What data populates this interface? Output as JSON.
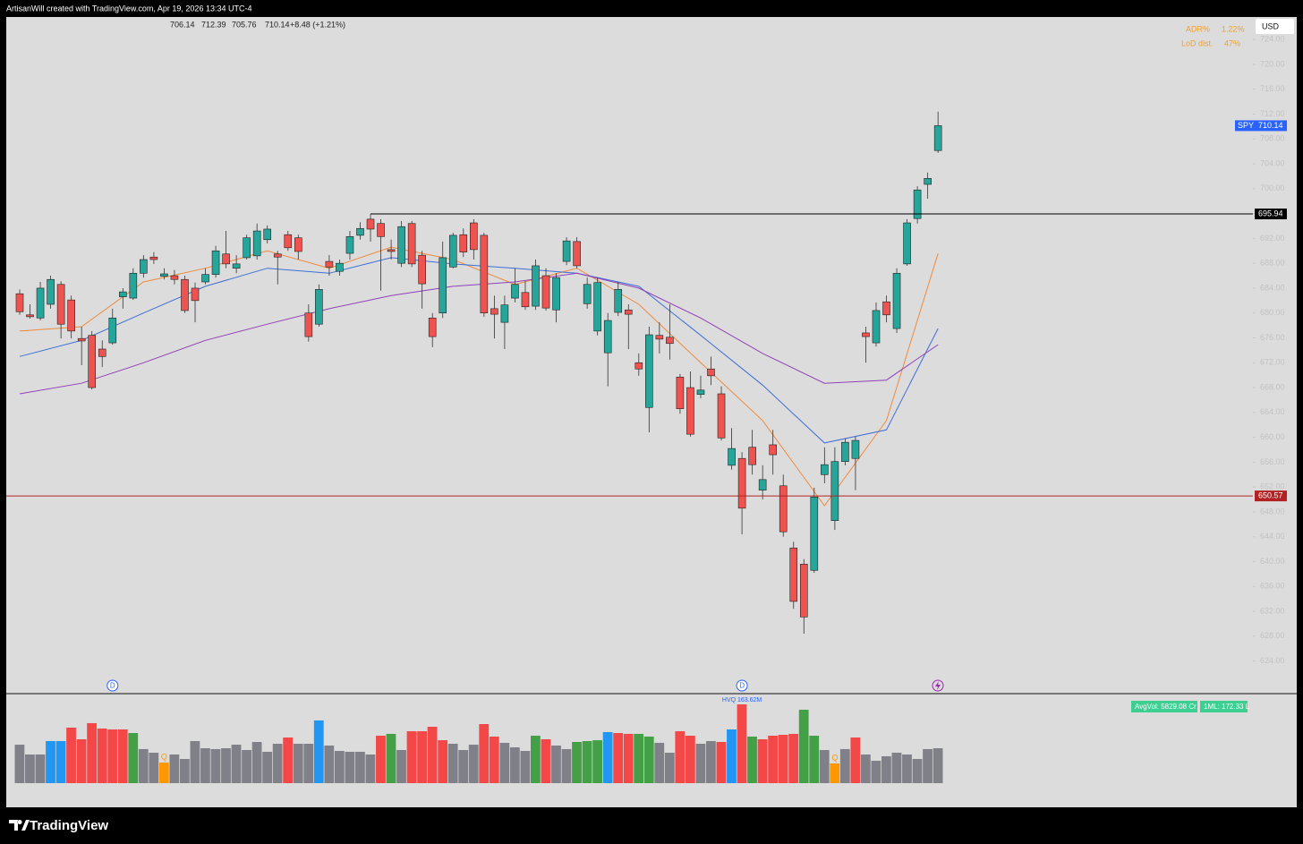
{
  "header": {
    "credit": "ArtisanWill created with TradingView.com, Apr 19, 2026 13:34 UTC-4",
    "change": "+8.48 (+1.21%)"
  },
  "footer": {
    "brand": "TradingView"
  },
  "chart_data": {
    "type": "candlestick",
    "symbol": "SPY",
    "currency": "USD",
    "up_color": "#26a69a",
    "down_color": "#ef5350",
    "open": [
      683.1,
      679.7,
      679.2,
      681.4,
      684.6,
      682.1,
      675.9,
      676.4,
      674.2,
      675.2,
      682.6,
      682.4,
      686.4,
      689.0,
      685.9,
      686.0,
      685.4,
      684.0,
      685.0,
      686.2,
      689.5,
      687.2,
      688.9,
      689.2,
      691.8,
      689.5,
      692.6,
      692.1,
      680.0,
      678.2,
      688.3,
      686.7,
      689.6,
      692.5,
      695.1,
      694.4,
      690.2,
      688.0,
      694.4,
      689.3,
      679.2,
      680.0,
      687.4,
      692.6,
      694.5,
      692.5,
      680.7,
      678.5,
      682.4,
      683.3,
      681.1,
      686.0,
      680.5,
      688.3,
      691.5,
      681.5,
      677.1,
      673.6,
      680.1,
      680.5,
      672.0,
      664.8,
      676.4,
      676.1,
      669.7,
      668.0,
      666.9,
      671.0,
      667.0,
      655.5,
      656.6,
      658.4,
      651.5,
      658.8,
      652.2,
      642.2,
      639.6,
      638.6,
      654.0,
      646.6,
      656.1,
      656.6,
      676.8,
      675.2,
      681.8,
      677.5,
      687.9,
      695.2,
      700.7,
      706.14
    ],
    "high": [
      683.8,
      681.4,
      685.0,
      686.0,
      685.1,
      682.8,
      677.8,
      677.1,
      675.6,
      680.7,
      684.0,
      687.2,
      689.3,
      689.8,
      687.2,
      686.9,
      686.0,
      684.9,
      687.2,
      690.8,
      693.2,
      689.3,
      692.6,
      694.4,
      694.1,
      690.0,
      693.2,
      692.6,
      681.4,
      684.6,
      689.3,
      688.6,
      693.2,
      694.6,
      695.9,
      695.1,
      691.8,
      694.8,
      694.8,
      690.0,
      680.0,
      691.5,
      692.9,
      693.6,
      695.1,
      692.9,
      682.8,
      682.8,
      687.2,
      685.1,
      688.6,
      687.2,
      686.4,
      692.2,
      692.2,
      685.7,
      685.7,
      680.0,
      685.0,
      681.4,
      673.5,
      677.8,
      678.5,
      681.4,
      670.2,
      670.6,
      669.9,
      673.0,
      668.2,
      661.5,
      657.6,
      661.2,
      655.5,
      661.2,
      654.0,
      643.2,
      640.4,
      651.9,
      658.4,
      658.4,
      659.8,
      660.1,
      677.8,
      681.7,
      682.8,
      687.2,
      695.1,
      700.4,
      702.6,
      712.39
    ],
    "low": [
      679.7,
      679.1,
      678.8,
      680.7,
      675.9,
      675.9,
      671.6,
      667.7,
      671.3,
      674.9,
      680.7,
      682.1,
      685.7,
      687.9,
      685.4,
      684.6,
      680.0,
      678.5,
      684.6,
      685.7,
      687.2,
      686.4,
      688.6,
      688.6,
      691.2,
      684.6,
      690.0,
      688.6,
      675.4,
      677.8,
      686.0,
      686.0,
      688.6,
      691.8,
      691.5,
      683.6,
      688.6,
      687.4,
      687.4,
      680.7,
      674.5,
      679.2,
      687.2,
      689.0,
      688.6,
      679.4,
      675.9,
      674.2,
      681.7,
      680.5,
      680.5,
      680.4,
      678.5,
      687.7,
      687.2,
      680.7,
      676.4,
      668.2,
      679.5,
      674.2,
      669.9,
      660.8,
      673.5,
      672.5,
      663.8,
      660.1,
      666.3,
      668.4,
      659.5,
      654.8,
      644.4,
      654.0,
      650.0,
      654.0,
      644.0,
      632.4,
      628.4,
      638.2,
      652.6,
      645.1,
      655.5,
      651.5,
      672.0,
      674.6,
      678.5,
      676.8,
      687.6,
      694.4,
      698.4,
      705.76
    ],
    "close": [
      680.2,
      679.4,
      684.0,
      685.4,
      678.2,
      677.1,
      675.5,
      668.0,
      673.0,
      679.2,
      683.4,
      686.4,
      688.6,
      688.6,
      686.3,
      685.4,
      680.4,
      682.0,
      686.2,
      690.0,
      687.9,
      687.9,
      692.1,
      693.2,
      693.5,
      689.0,
      690.5,
      689.9,
      676.2,
      683.8,
      687.4,
      688.0,
      692.3,
      693.6,
      693.5,
      692.3,
      689.9,
      693.9,
      687.9,
      684.7,
      676.2,
      688.9,
      692.5,
      689.8,
      690.2,
      680.0,
      679.8,
      681.3,
      684.6,
      681.0,
      687.6,
      680.8,
      685.7,
      691.6,
      687.6,
      684.6,
      684.9,
      678.8,
      683.8,
      679.8,
      671.0,
      676.5,
      675.8,
      675.1,
      664.6,
      660.5,
      667.6,
      669.9,
      659.9,
      658.2,
      648.6,
      655.6,
      653.2,
      657.2,
      644.8,
      633.6,
      631.1,
      650.4,
      655.6,
      656.1,
      659.2,
      659.5,
      676.2,
      680.4,
      679.7,
      686.4,
      694.5,
      699.8,
      701.66,
      710.14
    ],
    "ylim": [
      618.76,
      727.48
    ],
    "yticks": [
      {
        "value": 624,
        "label": "624.00"
      },
      {
        "value": 628,
        "label": "628.00"
      },
      {
        "value": 632,
        "label": "632.00"
      },
      {
        "value": 636,
        "label": "636.00"
      },
      {
        "value": 640,
        "label": "640.00"
      },
      {
        "value": 644,
        "label": "644.00"
      },
      {
        "value": 648,
        "label": "648.00"
      },
      {
        "value": 652,
        "label": "652.00"
      },
      {
        "value": 656,
        "label": "656.00"
      },
      {
        "value": 660,
        "label": "660.00"
      },
      {
        "value": 664,
        "label": "664.00"
      },
      {
        "value": 668,
        "label": "668.00"
      },
      {
        "value": 672,
        "label": "672.00"
      },
      {
        "value": 676,
        "label": "676.00"
      },
      {
        "value": 680,
        "label": "680.00"
      },
      {
        "value": 684,
        "label": "684.00"
      },
      {
        "value": 688,
        "label": "688.00"
      },
      {
        "value": 692,
        "label": "692.00"
      },
      {
        "value": 696,
        "label": "696.00"
      },
      {
        "value": 700,
        "label": "700.00"
      },
      {
        "value": 704,
        "label": "704.00"
      },
      {
        "value": 708,
        "label": "708.00"
      },
      {
        "value": 712,
        "label": "712.00"
      },
      {
        "value": 716,
        "label": "716.00"
      },
      {
        "value": 720,
        "label": "720.00"
      },
      {
        "value": 724,
        "label": "724.00"
      }
    ],
    "moving_averages": [
      {
        "color": "#f08a3c",
        "x": [
          0,
          6,
          12,
          18,
          24,
          30,
          36,
          42,
          48,
          54,
          60,
          66,
          72,
          78,
          84,
          89
        ],
        "values": [
          677.1,
          677.8,
          685.0,
          687.2,
          690.0,
          687.2,
          690.6,
          688.6,
          684.6,
          687.2,
          681.4,
          672.0,
          662.7,
          649.0,
          662.7,
          689.6
        ]
      },
      {
        "color": "#3e6fd8",
        "x": [
          0,
          6,
          12,
          18,
          24,
          30,
          36,
          42,
          48,
          54,
          60,
          66,
          72,
          78,
          84,
          89
        ],
        "values": [
          673.0,
          675.6,
          680.0,
          684.3,
          687.2,
          686.4,
          688.9,
          687.9,
          687.2,
          686.4,
          684.3,
          676.4,
          668.4,
          659.1,
          661.2,
          677.5
        ]
      },
      {
        "color": "#9140b8",
        "x": [
          0,
          6,
          12,
          18,
          24,
          30,
          36,
          42,
          48,
          54,
          60,
          66,
          72,
          78,
          84,
          89
        ],
        "values": [
          667.0,
          668.7,
          672.0,
          675.6,
          678.2,
          680.7,
          682.8,
          684.3,
          685.0,
          686.4,
          684.0,
          679.2,
          673.5,
          668.7,
          669.2,
          674.9
        ]
      }
    ],
    "hlines": [
      {
        "value": 695.94,
        "color": "#000000",
        "x_start": 34
      },
      {
        "value": 650.57,
        "color": "#b22222",
        "x_start": 0
      }
    ],
    "events": [
      {
        "x": 9,
        "label": "D"
      },
      {
        "x": 70,
        "label": "D"
      }
    ],
    "indicators": {
      "adr_label": "ADR%",
      "adr_value": "1.22%",
      "lod_label": "LoD dist.",
      "lod_value": "47%"
    },
    "volume": {
      "ylim": [
        0,
        182.2
      ],
      "values": [
        79.9,
        59.5,
        59.5,
        87.4,
        87.4,
        115.3,
        91.1,
        124.6,
        113.4,
        111.6,
        111.6,
        104.1,
        70.7,
        63.2,
        42.8,
        59.5,
        50.2,
        87.4,
        72.5,
        70.7,
        72.5,
        79.9,
        68.8,
        85.5,
        65.1,
        81.8,
        94.8,
        81.8,
        81.8,
        130.2,
        78.1,
        66.9,
        65.1,
        65.1,
        59.5,
        98.5,
        102.3,
        68.8,
        107.8,
        107.8,
        117.1,
        89.2,
        81.8,
        68.8,
        79.9,
        122.7,
        96.7,
        83.7,
        74.4,
        66.9,
        98.5,
        91.1,
        78.1,
        70.7,
        85.5,
        87.4,
        89.2,
        106.0,
        104.1,
        102.3,
        102.3,
        96.7,
        83.7,
        63.2,
        107.8,
        98.5,
        81.8,
        87.4,
        85.5,
        111.6,
        163.62,
        96.7,
        91.1,
        98.5,
        100.4,
        102.3,
        152.5,
        98.5,
        68.8,
        40.9,
        70.7,
        94.8,
        59.5,
        46.5,
        55.8,
        63.2,
        59.5,
        50.2,
        70.7,
        72.5
      ],
      "colors": [
        "#808089",
        "#808089",
        "#808089",
        "#2196f3",
        "#2196f3",
        "#f44747",
        "#f44747",
        "#f44747",
        "#f44747",
        "#f44747",
        "#f44747",
        "#43a047",
        "#808089",
        "#808089",
        "#ff9800",
        "#808089",
        "#808089",
        "#808089",
        "#808089",
        "#808089",
        "#808089",
        "#808089",
        "#808089",
        "#808089",
        "#808089",
        "#808089",
        "#f44747",
        "#808089",
        "#808089",
        "#2196f3",
        "#808089",
        "#808089",
        "#808089",
        "#808089",
        "#808089",
        "#f44747",
        "#43a047",
        "#808089",
        "#f44747",
        "#f44747",
        "#f44747",
        "#f44747",
        "#808089",
        "#808089",
        "#808089",
        "#f44747",
        "#f44747",
        "#808089",
        "#808089",
        "#808089",
        "#43a047",
        "#f44747",
        "#808089",
        "#808089",
        "#43a047",
        "#43a047",
        "#43a047",
        "#2196f3",
        "#f44747",
        "#f44747",
        "#43a047",
        "#43a047",
        "#808089",
        "#808089",
        "#f44747",
        "#f44747",
        "#808089",
        "#808089",
        "#f44747",
        "#2196f3",
        "#f44747",
        "#43a047",
        "#f44747",
        "#f44747",
        "#f44747",
        "#f44747",
        "#43a047",
        "#43a047",
        "#808089",
        "#ff9800",
        "#808089",
        "#f44747",
        "#808089",
        "#808089",
        "#808089",
        "#808089",
        "#808089",
        "#808089",
        "#808089",
        "#808089"
      ],
      "markers": [
        {
          "x": 14,
          "label": "Q"
        },
        {
          "x": 79,
          "label": "Q"
        }
      ],
      "hvq_label": "HVQ 163.62M",
      "avg_vol": "AvgVol: 5829.08 Cr",
      "ml": "1ML: 172.33 L"
    }
  }
}
